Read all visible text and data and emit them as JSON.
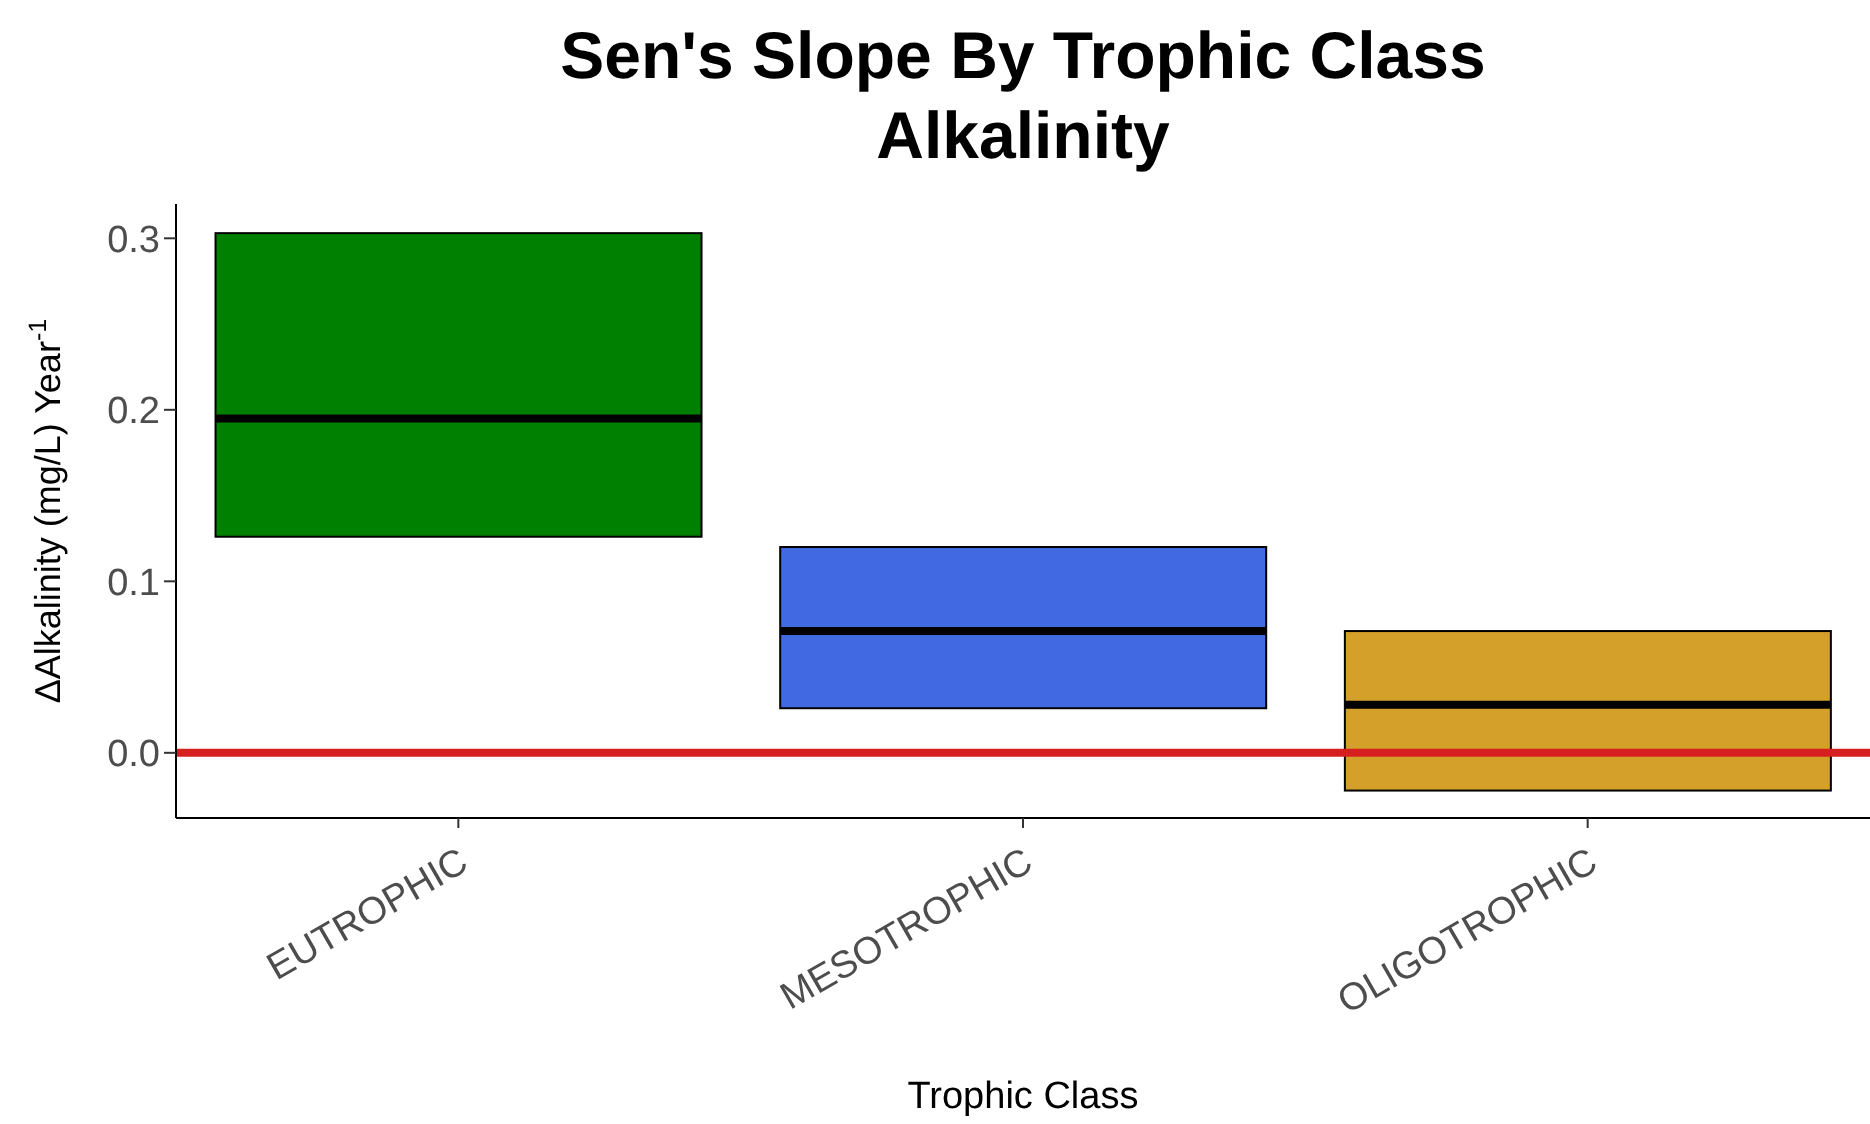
{
  "chart_data": {
    "type": "box",
    "title": "Sen's Slope By Trophic Class",
    "subtitle": "Alkalinity",
    "xlabel": "Trophic Class",
    "ylabel": "ΔAlkalinity (mg/L) Year$^{-1}$",
    "categories": [
      "EUTROPHIC",
      "MESOTROPHIC",
      "OLIGOTROPHIC"
    ],
    "boxes": [
      {
        "low": 0.126,
        "q1": 0.126,
        "median": 0.195,
        "q3": 0.303,
        "high": 0.303
      },
      {
        "low": 0.026,
        "q1": 0.026,
        "median": 0.071,
        "q3": 0.12,
        "high": 0.12
      },
      {
        "low": -0.022,
        "q1": -0.022,
        "median": 0.028,
        "q3": 0.071,
        "high": 0.071
      }
    ],
    "colors": [
      "#008000",
      "#4169e1",
      "#d4a02a"
    ],
    "ylim": [
      -0.038,
      0.32
    ],
    "yticks": [
      {
        "value": 0,
        "label": "0.0"
      },
      0.1,
      0.2,
      0.3
    ],
    "ref_lines": [
      {
        "axis": "y",
        "value": 0,
        "color": "#d62020"
      }
    ],
    "grid": false
  }
}
